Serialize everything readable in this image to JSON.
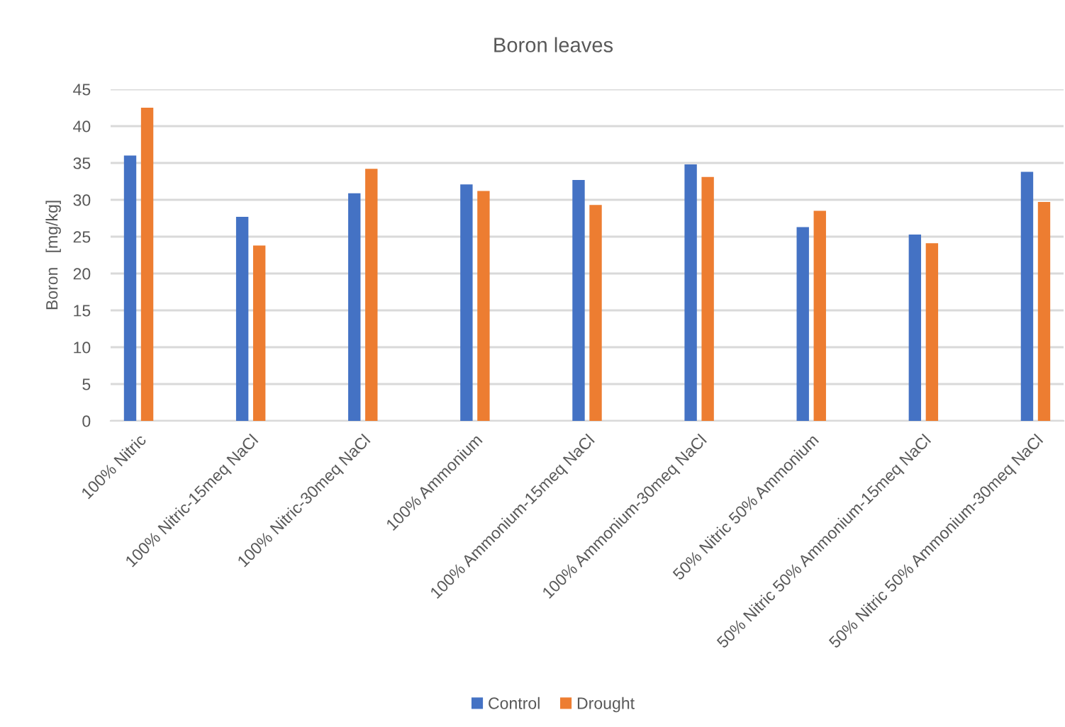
{
  "chart_data": {
    "type": "bar",
    "title": "Boron leaves",
    "ylabel": "Boron   [mg/kg]",
    "categories": [
      "100% Nitric",
      "100% Nitric-15meq NaCl",
      "100% Nitric-30meq NaCl",
      "100% Ammonium",
      "100% Ammonium-15meq NaCl",
      "100% Ammonium-30meq NaCl",
      "50% Nitric 50% Ammonium",
      "50% Nitric 50% Ammonium-15meq NaCl",
      "50% Nitric 50% Ammonium-30meq NaCl"
    ],
    "series": [
      {
        "name": "Control",
        "color": "#4472c4",
        "values": [
          36.0,
          27.7,
          30.9,
          32.1,
          32.7,
          34.8,
          26.3,
          25.3,
          33.8
        ]
      },
      {
        "name": "Drought",
        "color": "#ed7d31",
        "values": [
          42.5,
          23.8,
          34.2,
          31.2,
          29.3,
          33.1,
          28.5,
          24.1,
          29.7
        ]
      }
    ],
    "ylim": [
      0,
      45
    ],
    "yticks": [
      0,
      5,
      10,
      15,
      20,
      25,
      30,
      35,
      40,
      45
    ],
    "grid": "y",
    "legend": "bottom"
  }
}
